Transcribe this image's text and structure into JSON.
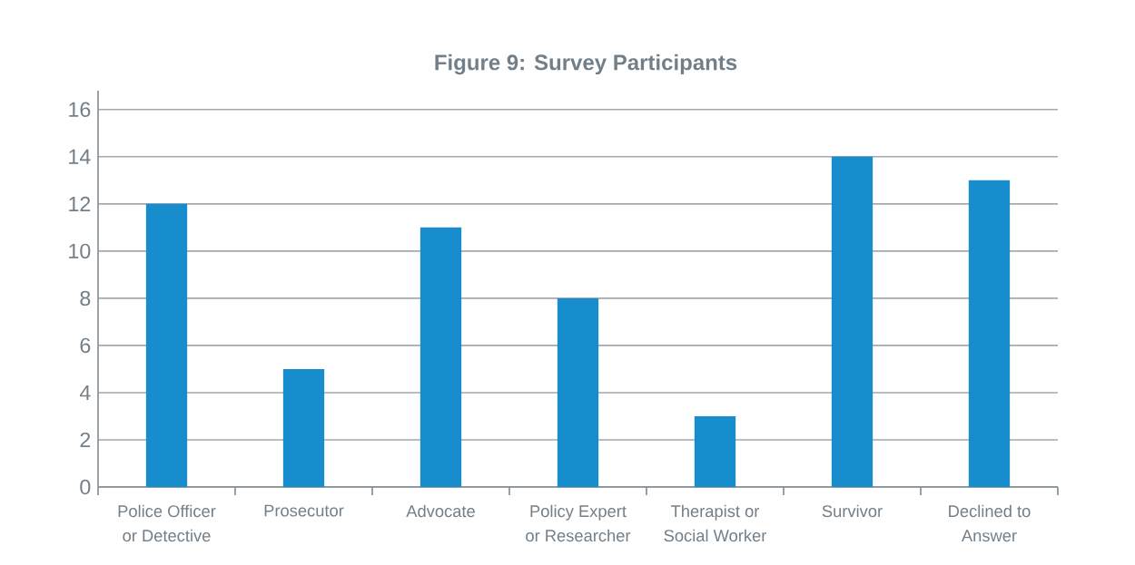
{
  "chart_data": {
    "type": "bar",
    "title": "Figure 9: Survey Participants",
    "categories": [
      "Police Officer or Detective",
      "Prosecutor",
      "Advocate",
      "Policy Expert or Researcher",
      "Therapist or Social Worker",
      "Survivor",
      "Declined to Answer"
    ],
    "values": [
      12,
      5,
      11,
      8,
      3,
      14,
      13
    ],
    "color": "#188dce",
    "ylim": [
      0,
      16.8
    ],
    "yticks": [
      0,
      2,
      4,
      6,
      8,
      10,
      12,
      14,
      16
    ],
    "grid": "y"
  }
}
